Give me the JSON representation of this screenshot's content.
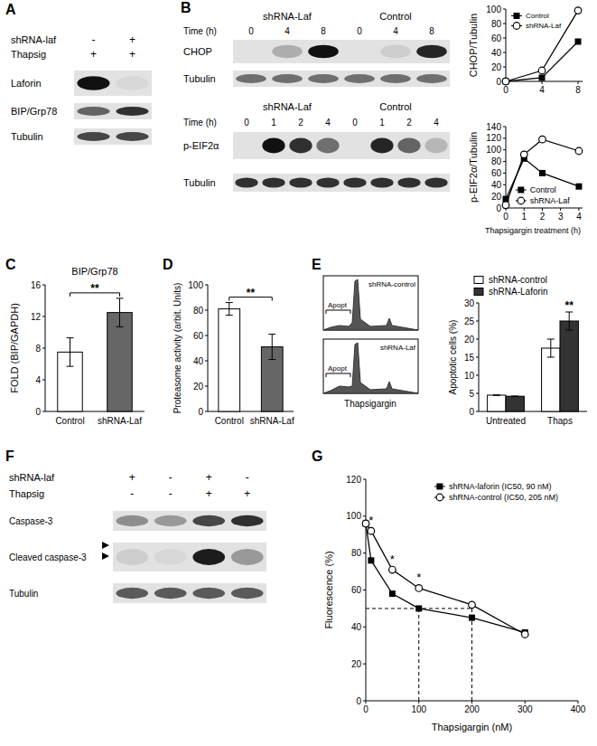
{
  "panel_a": {
    "label": "A",
    "rows": [
      {
        "name": "shRNA-laf",
        "signs": [
          "-",
          "+"
        ]
      },
      {
        "name": "Thapsig",
        "signs": [
          "+",
          "+"
        ]
      }
    ],
    "blots": [
      {
        "name": "Laforin",
        "bands": [
          1,
          0.05
        ]
      },
      {
        "name": "BIP/Grp78",
        "bands": [
          0.6,
          0.85
        ]
      },
      {
        "name": "Tubulin",
        "bands": [
          0.75,
          0.75
        ]
      }
    ]
  },
  "panel_b": {
    "label": "B",
    "blot_sets": [
      {
        "groups": [
          "shRNA-Laf",
          "Control"
        ],
        "time_label": "Time (h)",
        "times": [
          "0",
          "4",
          "8"
        ],
        "blots": [
          {
            "name": "CHOP",
            "bands": [
              0,
              0.25,
              1,
              0,
              0.1,
              0.9
            ]
          },
          {
            "name": "Tubulin",
            "bands": [
              0.55,
              0.55,
              0.55,
              0.55,
              0.55,
              0.55
            ]
          }
        ]
      },
      {
        "groups": [
          "shRNA-Laf",
          "Control"
        ],
        "time_label": "Time (h)",
        "times": [
          "0",
          "1",
          "2",
          "4"
        ],
        "blots": [
          {
            "name": "p-EIF2α",
            "bands": [
              0,
              1,
              0.85,
              0.55,
              0,
              0.9,
              0.6,
              0.2
            ]
          },
          {
            "name": "Tubulin",
            "bands": [
              0.85,
              0.85,
              0.85,
              0.85,
              0.85,
              0.85,
              0.85,
              0.85
            ]
          }
        ]
      }
    ]
  },
  "panel_e": {
    "label": "E",
    "histograms": [
      "shRNA-control",
      "shRNA-Laf"
    ],
    "gate": "Apopt",
    "x_label": "Thapsigargin"
  },
  "panel_f": {
    "label": "F",
    "rows": [
      {
        "name": "shRNA-laf",
        "signs": [
          "+",
          "-",
          "+",
          "-"
        ]
      },
      {
        "name": "Thapsig",
        "signs": [
          "-",
          "-",
          "+",
          "+"
        ]
      }
    ],
    "blots": [
      {
        "name": "Caspase-3",
        "bands": [
          0.4,
          0.35,
          0.75,
          0.85
        ]
      },
      {
        "name": "Cleaved caspase-3",
        "bands": [
          0.1,
          0.05,
          0.95,
          0.35
        ]
      },
      {
        "name": "Tubulin",
        "bands": [
          0.65,
          0.65,
          0.65,
          0.65
        ]
      }
    ]
  },
  "chart_data": [
    {
      "type": "line",
      "y_label": "CHOP/Tubulin",
      "x": [
        0,
        4,
        8
      ],
      "xlim": [
        0,
        8.5
      ],
      "xticks": [
        0,
        4,
        8
      ],
      "ylim": [
        0,
        100
      ],
      "yticks": [
        0,
        20,
        40,
        60,
        80,
        100
      ],
      "legend": "upper left",
      "series": [
        {
          "name": "Control",
          "color": "#000000",
          "marker": "square",
          "values": [
            0,
            5,
            55
          ]
        },
        {
          "name": "shRNA-Laf",
          "color": "#000000",
          "marker": "open-circle",
          "values": [
            0,
            15,
            98
          ]
        }
      ]
    },
    {
      "type": "line",
      "y_label": "p-EIF2α/Tubulin",
      "x_label": "Thapsigargin treatment (h)",
      "x": [
        0,
        1,
        2,
        4
      ],
      "xlim": [
        0,
        4.2
      ],
      "xticks": [
        0,
        1,
        2,
        3,
        4
      ],
      "ylim": [
        0,
        140
      ],
      "yticks": [
        0,
        20,
        40,
        60,
        80,
        100,
        120,
        140
      ],
      "legend": "lower center",
      "series": [
        {
          "name": "Control",
          "color": "#000000",
          "marker": "square",
          "values": [
            15,
            85,
            60,
            37
          ]
        },
        {
          "name": "shRNA-Laf",
          "color": "#000000",
          "marker": "open-circle",
          "values": [
            5,
            92,
            118,
            98
          ]
        }
      ]
    },
    {
      "type": "bar",
      "panel": "C",
      "title": "BIP/Grp78",
      "y_label": "FOLD (BIP/GAPDH)",
      "categories": [
        "Control",
        "shRNA-Laf"
      ],
      "values": [
        7.5,
        12.5
      ],
      "errors": [
        1.8,
        1.8
      ],
      "colors": [
        "#ffffff",
        "#666666"
      ],
      "ylim": [
        0,
        16
      ],
      "yticks": [
        0,
        4,
        8,
        12,
        16
      ],
      "annotation": "**"
    },
    {
      "type": "bar",
      "panel": "D",
      "y_label": "Proteasome activity (arbit. Units)",
      "categories": [
        "Control",
        "shRNA-Laf"
      ],
      "values": [
        81,
        51
      ],
      "errors": [
        5,
        10
      ],
      "colors": [
        "#ffffff",
        "#666666"
      ],
      "ylim": [
        0,
        100
      ],
      "yticks": [
        0,
        20,
        40,
        60,
        80,
        100
      ],
      "annotation": "**"
    },
    {
      "type": "bar",
      "y_label": "Apoptotic cells (%)",
      "categories": [
        "Untreated",
        "Thaps"
      ],
      "series": [
        {
          "name": "shRNA-control",
          "color": "#ffffff",
          "values": [
            4.5,
            17.5
          ],
          "errors": [
            0,
            2.5
          ]
        },
        {
          "name": "shRNA-Laforin",
          "color": "#333333",
          "values": [
            4.2,
            25
          ],
          "errors": [
            0,
            2.5
          ]
        }
      ],
      "ylim": [
        0,
        30
      ],
      "yticks": [
        0,
        5,
        10,
        15,
        20,
        25,
        30
      ],
      "legend": "top",
      "annotation": "**"
    },
    {
      "type": "line",
      "panel": "G",
      "y_label": "Fluorescence (%)",
      "x_label": "Thapsigargin (nM)",
      "x": [
        0,
        10,
        50,
        100,
        200,
        300
      ],
      "xlim": [
        0,
        400
      ],
      "xticks": [
        0,
        100,
        200,
        300,
        400
      ],
      "ylim": [
        0,
        120
      ],
      "yticks": [
        0,
        20,
        40,
        60,
        80,
        100,
        120
      ],
      "legend": "upper right",
      "series": [
        {
          "name": "shRNA-laforin (IC50, 90 nM)",
          "color": "#000000",
          "marker": "square",
          "values": [
            96,
            76,
            58,
            50,
            45,
            37
          ]
        },
        {
          "name": "shRNA-control (IC50, 205 nM)",
          "color": "#000000",
          "marker": "open-circle",
          "values": [
            96,
            92,
            71,
            61,
            52,
            36
          ]
        }
      ],
      "reference_lines": {
        "y": 50,
        "x": [
          100,
          200
        ]
      },
      "annotations": [
        {
          "text": "*",
          "x": 10
        },
        {
          "text": "*",
          "x": 50
        },
        {
          "text": "*",
          "x": 100
        }
      ]
    }
  ]
}
